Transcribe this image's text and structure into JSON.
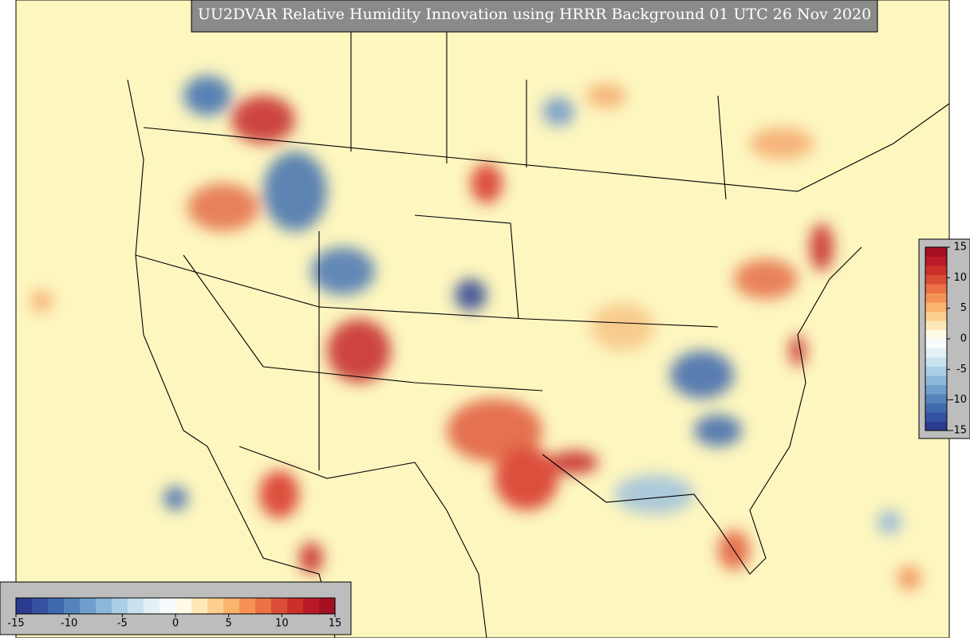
{
  "title": "UU2DVAR Relative Humidity Innovation using HRRR Background 01 UTC 26 Nov 2020",
  "colorbar_horizontal": {
    "ticks": [
      -15,
      -10,
      -5,
      0,
      5,
      10,
      15
    ]
  },
  "colorbar_vertical": {
    "ticks": [
      15,
      10,
      5,
      0,
      -5,
      -10,
      -15
    ]
  }
}
